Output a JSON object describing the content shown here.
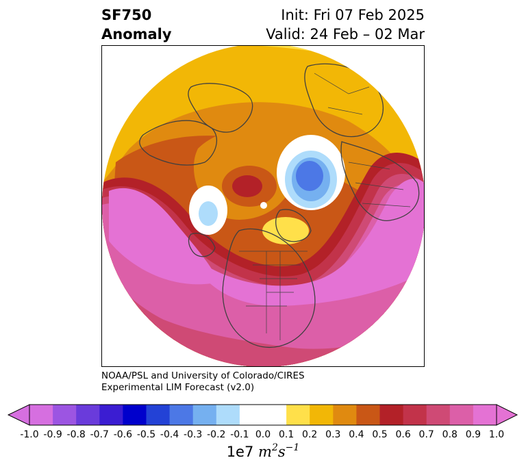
{
  "header": {
    "variable": "SF750",
    "kind": "Anomaly",
    "init": "Init: Fri 07 Feb 2025",
    "valid": "Valid: 24 Feb – 02 Mar"
  },
  "credit": {
    "line1": "NOAA/PSL and University of Colorado/CIRES",
    "line2": "Experimental LIM Forecast (v2.0)"
  },
  "colorbar": {
    "ticks": [
      "-1.0",
      "-0.9",
      "-0.8",
      "-0.7",
      "-0.6",
      "-0.5",
      "-0.4",
      "-0.3",
      "-0.2",
      "-0.1",
      "0.0",
      "0.1",
      "0.2",
      "0.3",
      "0.4",
      "0.5",
      "0.6",
      "0.7",
      "0.8",
      "0.9",
      "1.0"
    ],
    "colors": [
      "#d66fe0",
      "#9c55e2",
      "#6a3bdb",
      "#3b1dd2",
      "#0000cc",
      "#2342d6",
      "#4c78e6",
      "#75b0f0",
      "#aedcfb",
      "#ffffff",
      "#ffffff",
      "#ffe04a",
      "#f2b706",
      "#e08a10",
      "#c95716",
      "#b32128",
      "#c2334a",
      "#cf4a75",
      "#dc5fa8",
      "#e472d4"
    ],
    "extend_low_color": "#d66fe0",
    "extend_high_color": "#e472d4",
    "units_prefix": "1e7",
    "units_m": "m",
    "units_m_exp": "2",
    "units_s": "s",
    "units_s_exp": "−1"
  },
  "map": {
    "projection": "north polar stereographic",
    "field": "streamfunction anomaly at 750 hPa"
  }
}
